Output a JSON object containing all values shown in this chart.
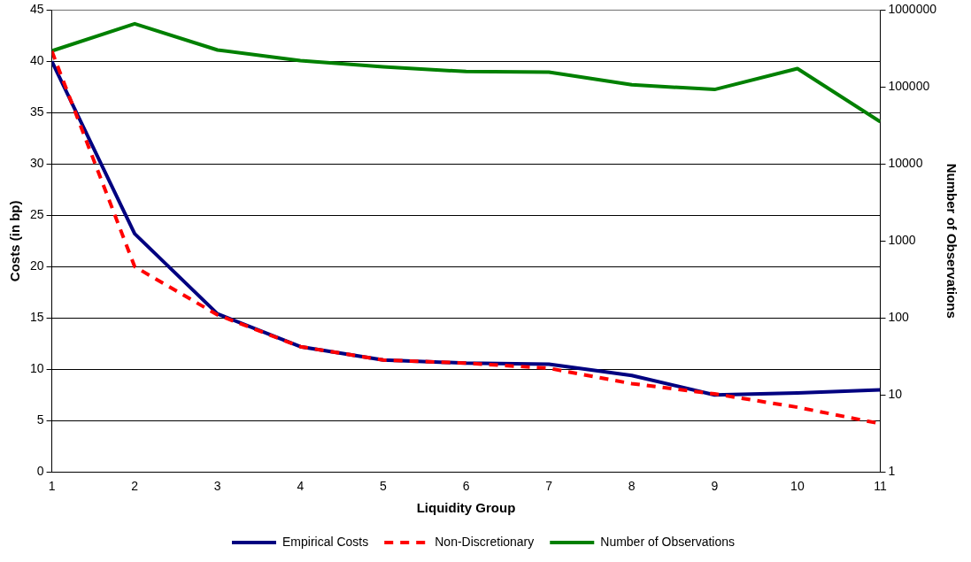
{
  "chart_data": {
    "type": "line",
    "xlabel": "Liquidity Group",
    "ylabel": "Costs (in bp)",
    "y2label": "Number of Observations",
    "x": [
      1,
      2,
      3,
      4,
      5,
      6,
      7,
      8,
      9,
      10,
      11
    ],
    "xlim": [
      1,
      11
    ],
    "xticks": [
      1,
      2,
      3,
      4,
      5,
      6,
      7,
      8,
      9,
      10,
      11
    ],
    "ylim": [
      0,
      45
    ],
    "yticks": [
      0,
      5,
      10,
      15,
      20,
      25,
      30,
      35,
      40,
      45
    ],
    "y2lim": [
      1,
      1000000
    ],
    "y2ticks": [
      1,
      10,
      100,
      1000,
      10000,
      100000,
      1000000
    ],
    "log": "y2",
    "grid": "y",
    "legend": "bottom",
    "marker": "none",
    "series": [
      {
        "name": "Empirical Costs",
        "color": "#000080",
        "line_style": "solid",
        "values": [
          40.0,
          23.2,
          15.4,
          12.2,
          10.9,
          10.6,
          10.5,
          9.4,
          7.5,
          7.7,
          8.0
        ]
      },
      {
        "name": "Non-Discretionary",
        "color": "#ff0000",
        "line_style": "dashed",
        "values": [
          41.0,
          20.0,
          15.3,
          12.2,
          10.9,
          10.6,
          10.1,
          8.6,
          7.6,
          6.3,
          4.7
        ]
      },
      {
        "name": "Number of Observations",
        "color": "#008000",
        "line_style": "solid",
        "axis": "y2",
        "values": [
          295000,
          665000,
          303000,
          220000,
          183000,
          159000,
          156000,
          107000,
          93000,
          174000,
          35500
        ]
      }
    ]
  }
}
